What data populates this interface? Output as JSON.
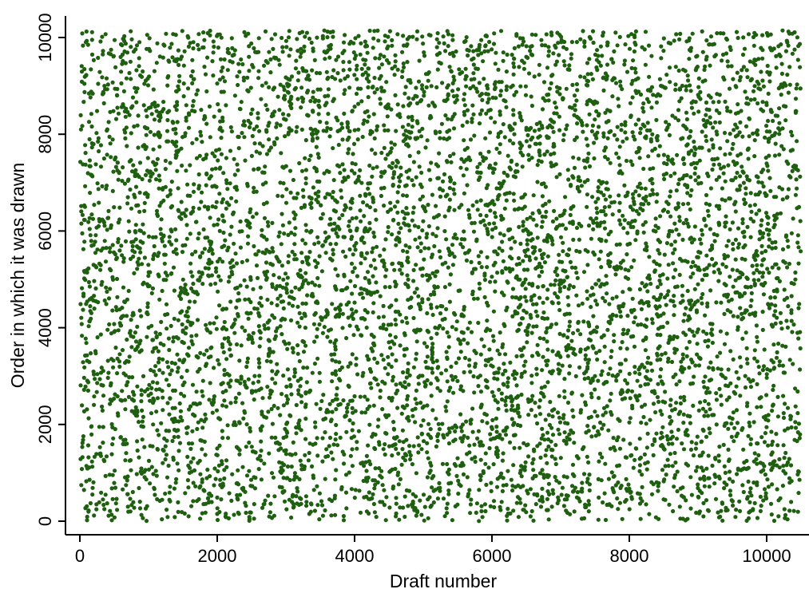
{
  "chart_data": {
    "type": "scatter",
    "title": "",
    "xlabel": "Draft number",
    "ylabel": "Order in which it was drawn",
    "xlim": [
      -300,
      10600
    ],
    "ylim": [
      -200,
      10250
    ],
    "xticks": [
      0,
      2000,
      4000,
      6000,
      8000,
      10000
    ],
    "yticks": [
      0,
      2000,
      4000,
      6000,
      8000,
      10000
    ],
    "xtick_labels": [
      "0",
      "2000",
      "4000",
      "6000",
      "8000",
      "10000"
    ],
    "ytick_labels": [
      "0",
      "2000",
      "4000",
      "6000",
      "8000",
      "10000"
    ],
    "grid": false,
    "legend": "none",
    "marker_color": "#1f5f10",
    "series": [
      {
        "name": "",
        "n_points": 10500,
        "x_range": [
          1,
          10500
        ],
        "y_range": [
          1,
          10150
        ],
        "distribution": "uniform random across the full plotting area (no visible correlation between draft number and order drawn)",
        "points": [
          [
            120,
            9850
          ],
          [
            1300,
            9500
          ],
          [
            2600,
            9700
          ],
          [
            3900,
            9200
          ],
          [
            5200,
            9800
          ],
          [
            6500,
            9600
          ],
          [
            7800,
            10100
          ],
          [
            9100,
            9400
          ],
          [
            10300,
            9900
          ],
          [
            400,
            8100
          ],
          [
            1700,
            7900
          ],
          [
            3000,
            8300
          ],
          [
            4300,
            7600
          ],
          [
            5600,
            8400
          ],
          [
            6900,
            7800
          ],
          [
            8200,
            8200
          ],
          [
            9500,
            7700
          ],
          [
            800,
            6700
          ],
          [
            2100,
            6200
          ],
          [
            3400,
            6900
          ],
          [
            4700,
            6400
          ],
          [
            6000,
            6600
          ],
          [
            7300,
            6100
          ],
          [
            8600,
            6300
          ],
          [
            9900,
            6800
          ],
          [
            200,
            5300
          ],
          [
            1500,
            5700
          ],
          [
            2800,
            4900
          ],
          [
            4100,
            5500
          ],
          [
            5400,
            5100
          ],
          [
            6700,
            5600
          ],
          [
            8000,
            4800
          ],
          [
            9300,
            5200
          ],
          [
            600,
            4200
          ],
          [
            1900,
            3900
          ],
          [
            3200,
            4300
          ],
          [
            4500,
            3700
          ],
          [
            5800,
            4100
          ],
          [
            7100,
            3800
          ],
          [
            8400,
            4400
          ],
          [
            9700,
            3900
          ],
          [
            1000,
            2600
          ],
          [
            2300,
            2900
          ],
          [
            3600,
            2300
          ],
          [
            4900,
            2700
          ],
          [
            6200,
            2400
          ],
          [
            7500,
            3000
          ],
          [
            8800,
            2500
          ],
          [
            10100,
            2800
          ],
          [
            300,
            1400
          ],
          [
            1600,
            1100
          ],
          [
            2900,
            1600
          ],
          [
            4200,
            900
          ],
          [
            5500,
            1300
          ],
          [
            6800,
            1200
          ],
          [
            8100,
            1500
          ],
          [
            9400,
            1000
          ],
          [
            700,
            300
          ],
          [
            2000,
            150
          ],
          [
            3300,
            400
          ],
          [
            4600,
            100
          ],
          [
            5900,
            350
          ],
          [
            7200,
            200
          ],
          [
            8500,
            450
          ],
          [
            9800,
            250
          ]
        ]
      }
    ]
  }
}
